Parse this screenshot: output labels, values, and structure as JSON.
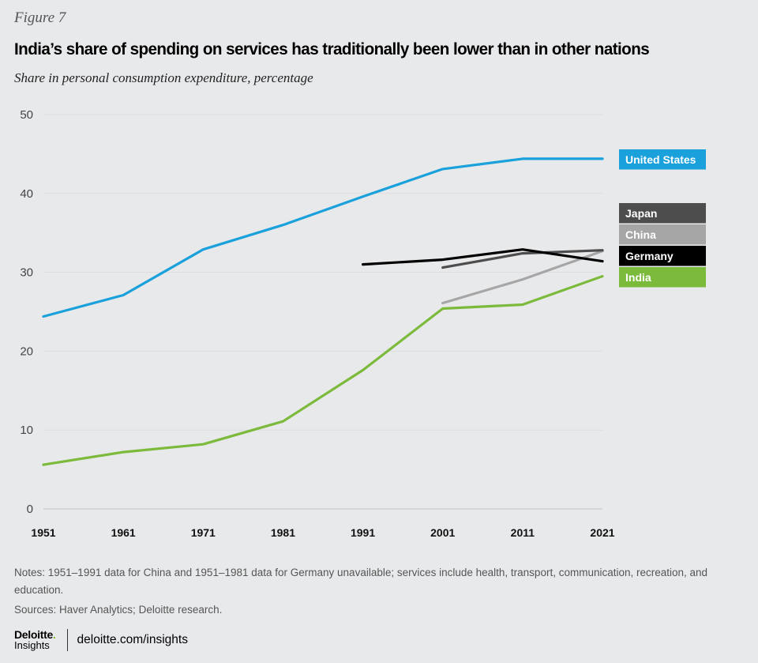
{
  "figure_label": "Figure 7",
  "title": "India’s share of spending on services has traditionally been lower than in other nations",
  "subtitle": "Share in personal consumption expenditure, percentage",
  "notes": "Notes: 1951–1991 data for China and 1951–1981 data for Germany unavailable; services include health, transport, communication, recreation, and education.",
  "sources": "Sources: Haver Analytics; Deloitte research.",
  "footer": {
    "logo_top": "Deloitte",
    "logo_dot": ".",
    "logo_bottom": "Insights",
    "url": "deloitte.com/insights"
  },
  "chart_data": {
    "type": "line",
    "title": "India’s share of spending on services has traditionally been lower than in other nations",
    "subtitle": "Share in personal consumption expenditure, percentage",
    "xlabel": "",
    "ylabel": "",
    "x": [
      1951,
      1961,
      1971,
      1981,
      1991,
      2001,
      2011,
      2021
    ],
    "x_tick_labels": [
      "1951",
      "1961",
      "1971",
      "1981",
      "1991",
      "2001",
      "2011",
      "2021"
    ],
    "y_ticks": [
      0,
      10,
      20,
      30,
      40,
      50
    ],
    "y_tick_labels": [
      "0",
      "10",
      "20",
      "30",
      "40",
      "50"
    ],
    "ylim": [
      0,
      50
    ],
    "grid": true,
    "legend_placement": "right (direct labels)",
    "series": [
      {
        "name": "United States",
        "color": "#1aa1dc",
        "values": [
          24.4,
          27.1,
          32.9,
          36.0,
          39.6,
          43.1,
          44.4,
          44.4
        ]
      },
      {
        "name": "Japan",
        "color": "#4d4d4d",
        "values": [
          null,
          null,
          null,
          null,
          null,
          30.6,
          32.4,
          32.8
        ]
      },
      {
        "name": "China",
        "color": "#a6a6a6",
        "values": [
          null,
          null,
          null,
          null,
          null,
          26.1,
          29.1,
          32.7
        ]
      },
      {
        "name": "Germany",
        "color": "#000000",
        "values": [
          null,
          null,
          null,
          null,
          31.0,
          31.6,
          32.9,
          31.4
        ]
      },
      {
        "name": "India",
        "color": "#7cba3c",
        "values": [
          5.6,
          7.2,
          8.2,
          11.1,
          17.6,
          25.4,
          25.9,
          29.5
        ]
      }
    ],
    "legend": [
      {
        "name": "United States",
        "color": "#1aa1dc"
      },
      {
        "name": "Japan",
        "color": "#4d4d4d"
      },
      {
        "name": "China",
        "color": "#a6a6a6"
      },
      {
        "name": "Germany",
        "color": "#000000"
      },
      {
        "name": "India",
        "color": "#7cba3c"
      }
    ]
  }
}
